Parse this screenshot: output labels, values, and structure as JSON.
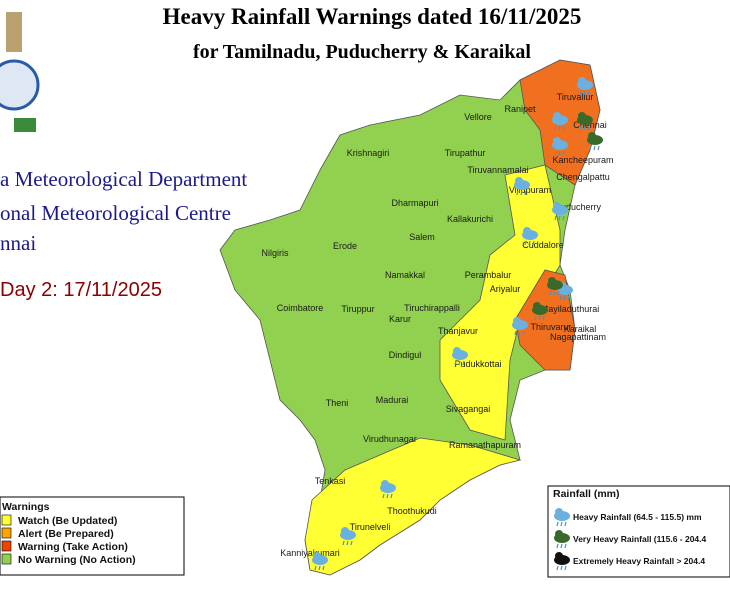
{
  "header": {
    "title": "Heavy Rainfall Warnings dated 16/11/2025",
    "subtitle": "for Tamilnadu, Puducherry & Karaikal"
  },
  "side_text": [
    "a Meteorological Department",
    "onal Meteorological Centre",
    "nnai"
  ],
  "day": "Day 2: 17/11/2025",
  "districts": [
    "Tiruvallur",
    "Chennai",
    "Ranipet",
    "Vellore",
    "Kancheepuram",
    "Chengalpattu",
    "Krishnagiri",
    "Tirupathur",
    "Tiruvannamalai",
    "Villupuram",
    "Puducherry",
    "Dharmapuri",
    "Kallakurichi",
    "Salem",
    "Cuddalore",
    "Nilgiris",
    "Erode",
    "Namakkal",
    "Perambalur",
    "Ariyalur",
    "Mayiladuthurai",
    "Karaikal",
    "Coimbatore",
    "Tiruppur",
    "Karur",
    "Tiruchirappalli",
    "Thiruvarur",
    "Nagapattinam",
    "Thanjavur",
    "Dindigul",
    "Pudukkottai",
    "Theni",
    "Madurai",
    "Sivagangai",
    "Virudhunagar",
    "Ramanathapuram",
    "Tenkasi",
    "Thoothukudi",
    "Tirunelveli",
    "Kanniyakumari"
  ],
  "warnings_legend": {
    "title": "Warnings",
    "items": [
      {
        "label": "Watch (Be Updated)",
        "color": "#ffff33"
      },
      {
        "label": "Alert (Be Prepared)",
        "color": "#ffa500"
      },
      {
        "label": "Warning (Take Action)",
        "color": "#ee4400"
      },
      {
        "label": "No Warning (No Action)",
        "color": "#92d050"
      }
    ]
  },
  "rainfall_legend": {
    "title": "Rainfall (mm)",
    "items": [
      "Heavy Rainfall (64.5 - 115.5) mm",
      "Very Heavy Rainfall (115.6 - 204.4",
      "Extremely Heavy Rainfall > 204.4"
    ]
  }
}
